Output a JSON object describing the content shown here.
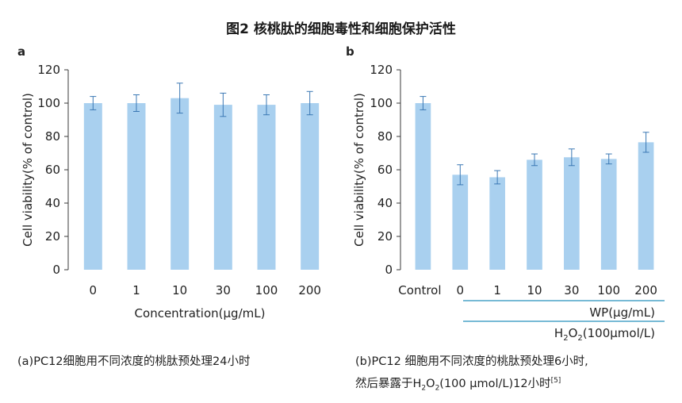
{
  "figure": {
    "title": "图2 核桃肽的细胞毒性和细胞保护活性"
  },
  "panels": {
    "a": {
      "letter": "a"
    },
    "b": {
      "letter": "b"
    }
  },
  "captions": {
    "a": {
      "text": "(a)PC12细胞用不同浓度的桃肽预处理24小时"
    },
    "b": {
      "line1": "(b)PC12 细胞用不同浓度的桃肽预处理6小时,",
      "line2_pre": "然后暴露于H",
      "line2_sub1": "2",
      "line2_mid": "O",
      "line2_sub2": "2",
      "line2_post": "(100 μmol/L)12小时",
      "line2_ref": "[5]"
    }
  },
  "chart_data": [
    {
      "id": "a",
      "type": "bar",
      "title": "",
      "xlabel": "Concentration(μg/mL)",
      "ylabel": "Cell viability(% of control)",
      "ylim": [
        0,
        120
      ],
      "yticks": [
        0,
        20,
        40,
        60,
        80,
        100,
        120
      ],
      "categories": [
        "0",
        "1",
        "10",
        "30",
        "100",
        "200"
      ],
      "values": [
        100,
        100,
        103,
        99,
        99,
        100
      ],
      "errors": [
        4,
        5,
        9,
        7,
        6,
        7
      ],
      "bar_color": "#a9d0ef",
      "error_color": "#3b78b4"
    },
    {
      "id": "b",
      "type": "bar",
      "title": "",
      "xlabel": "",
      "ylabel": "Cell viability(% of control)",
      "ylim": [
        0,
        120
      ],
      "yticks": [
        0,
        20,
        40,
        60,
        80,
        100,
        120
      ],
      "categories": [
        "Control",
        "0",
        "1",
        "10",
        "30",
        "100",
        "200"
      ],
      "values": [
        100,
        57,
        55.5,
        66,
        67.5,
        66.5,
        76.5
      ],
      "errors": [
        4,
        6,
        4,
        3.5,
        5,
        3,
        6
      ],
      "bar_color": "#a9d0ef",
      "error_color": "#3b78b4",
      "group_labels": {
        "wp": "WP(μg/mL)",
        "h2o2_pre": "H",
        "h2o2_sub1": "2",
        "h2o2_mid": "O",
        "h2o2_sub2": "2",
        "h2o2_post": "(100μmol/L)"
      },
      "group_line_color": "#4aa3c7"
    }
  ]
}
